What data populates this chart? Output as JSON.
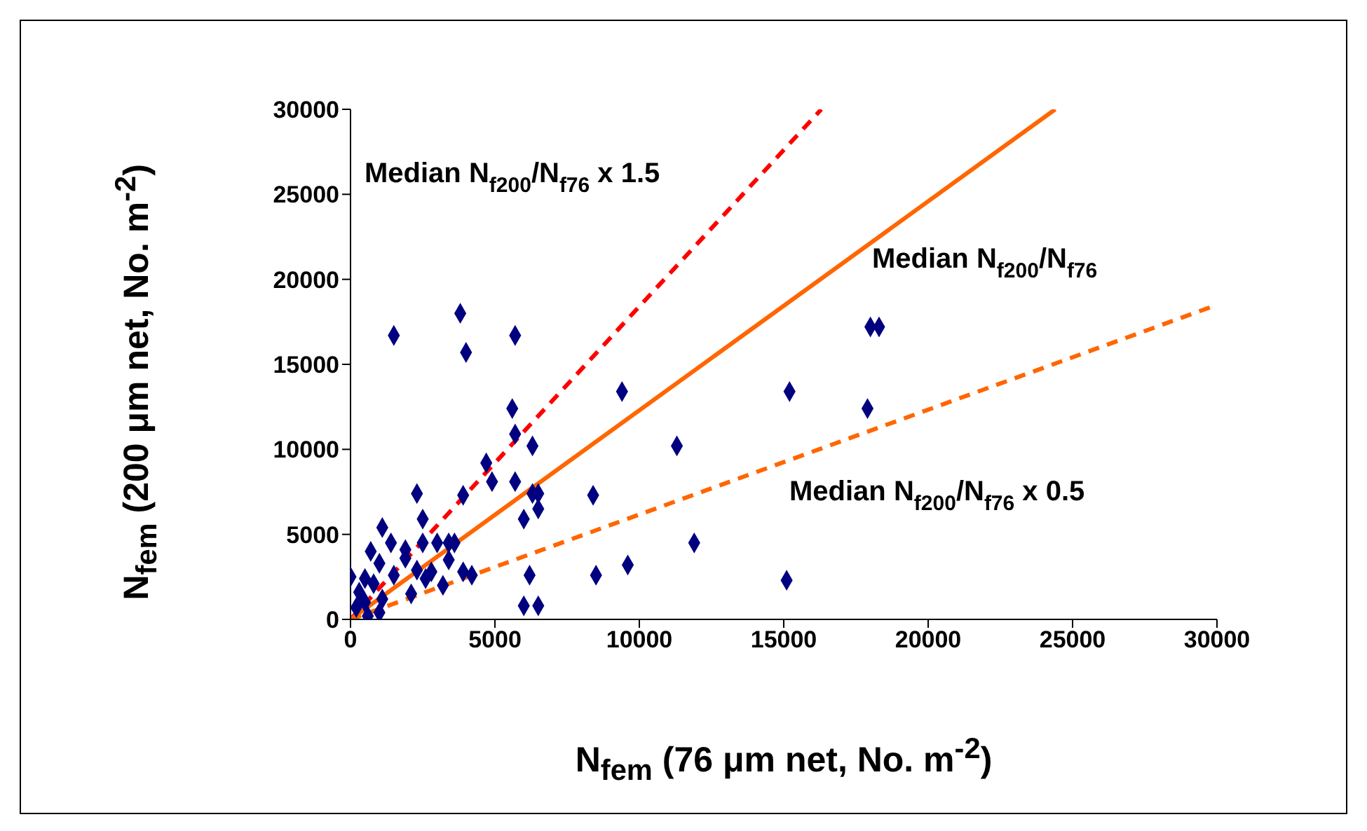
{
  "chart_data": {
    "type": "scatter",
    "xlabel": "N$_{fem}$ (76 μm net, No. m$^{-2}$)",
    "ylabel": "N$_{fem}$ (200 μm net, No. m$^{-2}$)",
    "xlim": [
      0,
      30000
    ],
    "ylim": [
      0,
      30000
    ],
    "xticks": [
      0,
      5000,
      10000,
      15000,
      20000,
      25000,
      30000
    ],
    "yticks": [
      0,
      5000,
      10000,
      15000,
      20000,
      25000,
      30000
    ],
    "annotations": [
      "Median N$_{f200}$/N$_{f76}$ x 1.5",
      "Median N$_{f200}$/N$_{f76}$",
      "Median N$_{f200}$/N$_{f76}$ x 0.5"
    ],
    "series": [
      {
        "type": "line",
        "color": "#ff0000",
        "line_style": "dashed",
        "x": [
          0,
          16300
        ],
        "values": [
          0,
          30000
        ]
      },
      {
        "type": "line",
        "color": "#ff6600",
        "line_style": "solid",
        "x": [
          0,
          24400
        ],
        "values": [
          0,
          30000
        ]
      },
      {
        "type": "line",
        "color": "#ff6600",
        "line_style": "dashed",
        "x": [
          0,
          30000
        ],
        "values": [
          0,
          18500
        ]
      },
      {
        "color": "#000080",
        "marker": "diamond",
        "x": [
          1500,
          3800,
          4000,
          5700,
          9400,
          5600,
          5700,
          6300,
          4700,
          4900,
          5700,
          6300,
          6500,
          6500,
          6000,
          8400,
          3900,
          2300,
          2500,
          1100,
          1400,
          700,
          1900,
          2500,
          3000,
          3400,
          3600,
          1900,
          3400,
          1000,
          1500,
          0,
          2300,
          2800,
          2600,
          3200,
          3900,
          4200,
          6200,
          8500,
          9600,
          2100,
          6000,
          6500,
          200,
          500,
          800,
          500,
          1100,
          300,
          1000,
          600,
          18000,
          18300,
          15200,
          17900,
          11300,
          11900,
          15100
        ],
        "values": [
          16700,
          18000,
          15700,
          16700,
          13400,
          12400,
          10900,
          10200,
          9200,
          8100,
          8100,
          7400,
          7400,
          6500,
          5900,
          7300,
          7300,
          7400,
          5900,
          5400,
          4500,
          4000,
          4100,
          4500,
          4500,
          4500,
          4500,
          3600,
          3500,
          3300,
          2600,
          2500,
          2900,
          2800,
          2400,
          2000,
          2800,
          2600,
          2600,
          2600,
          3200,
          1500,
          800,
          800,
          700,
          1000,
          2100,
          2400,
          1200,
          1600,
          400,
          200,
          17200,
          17200,
          13400,
          12400,
          10200,
          4500,
          2300
        ]
      }
    ]
  }
}
